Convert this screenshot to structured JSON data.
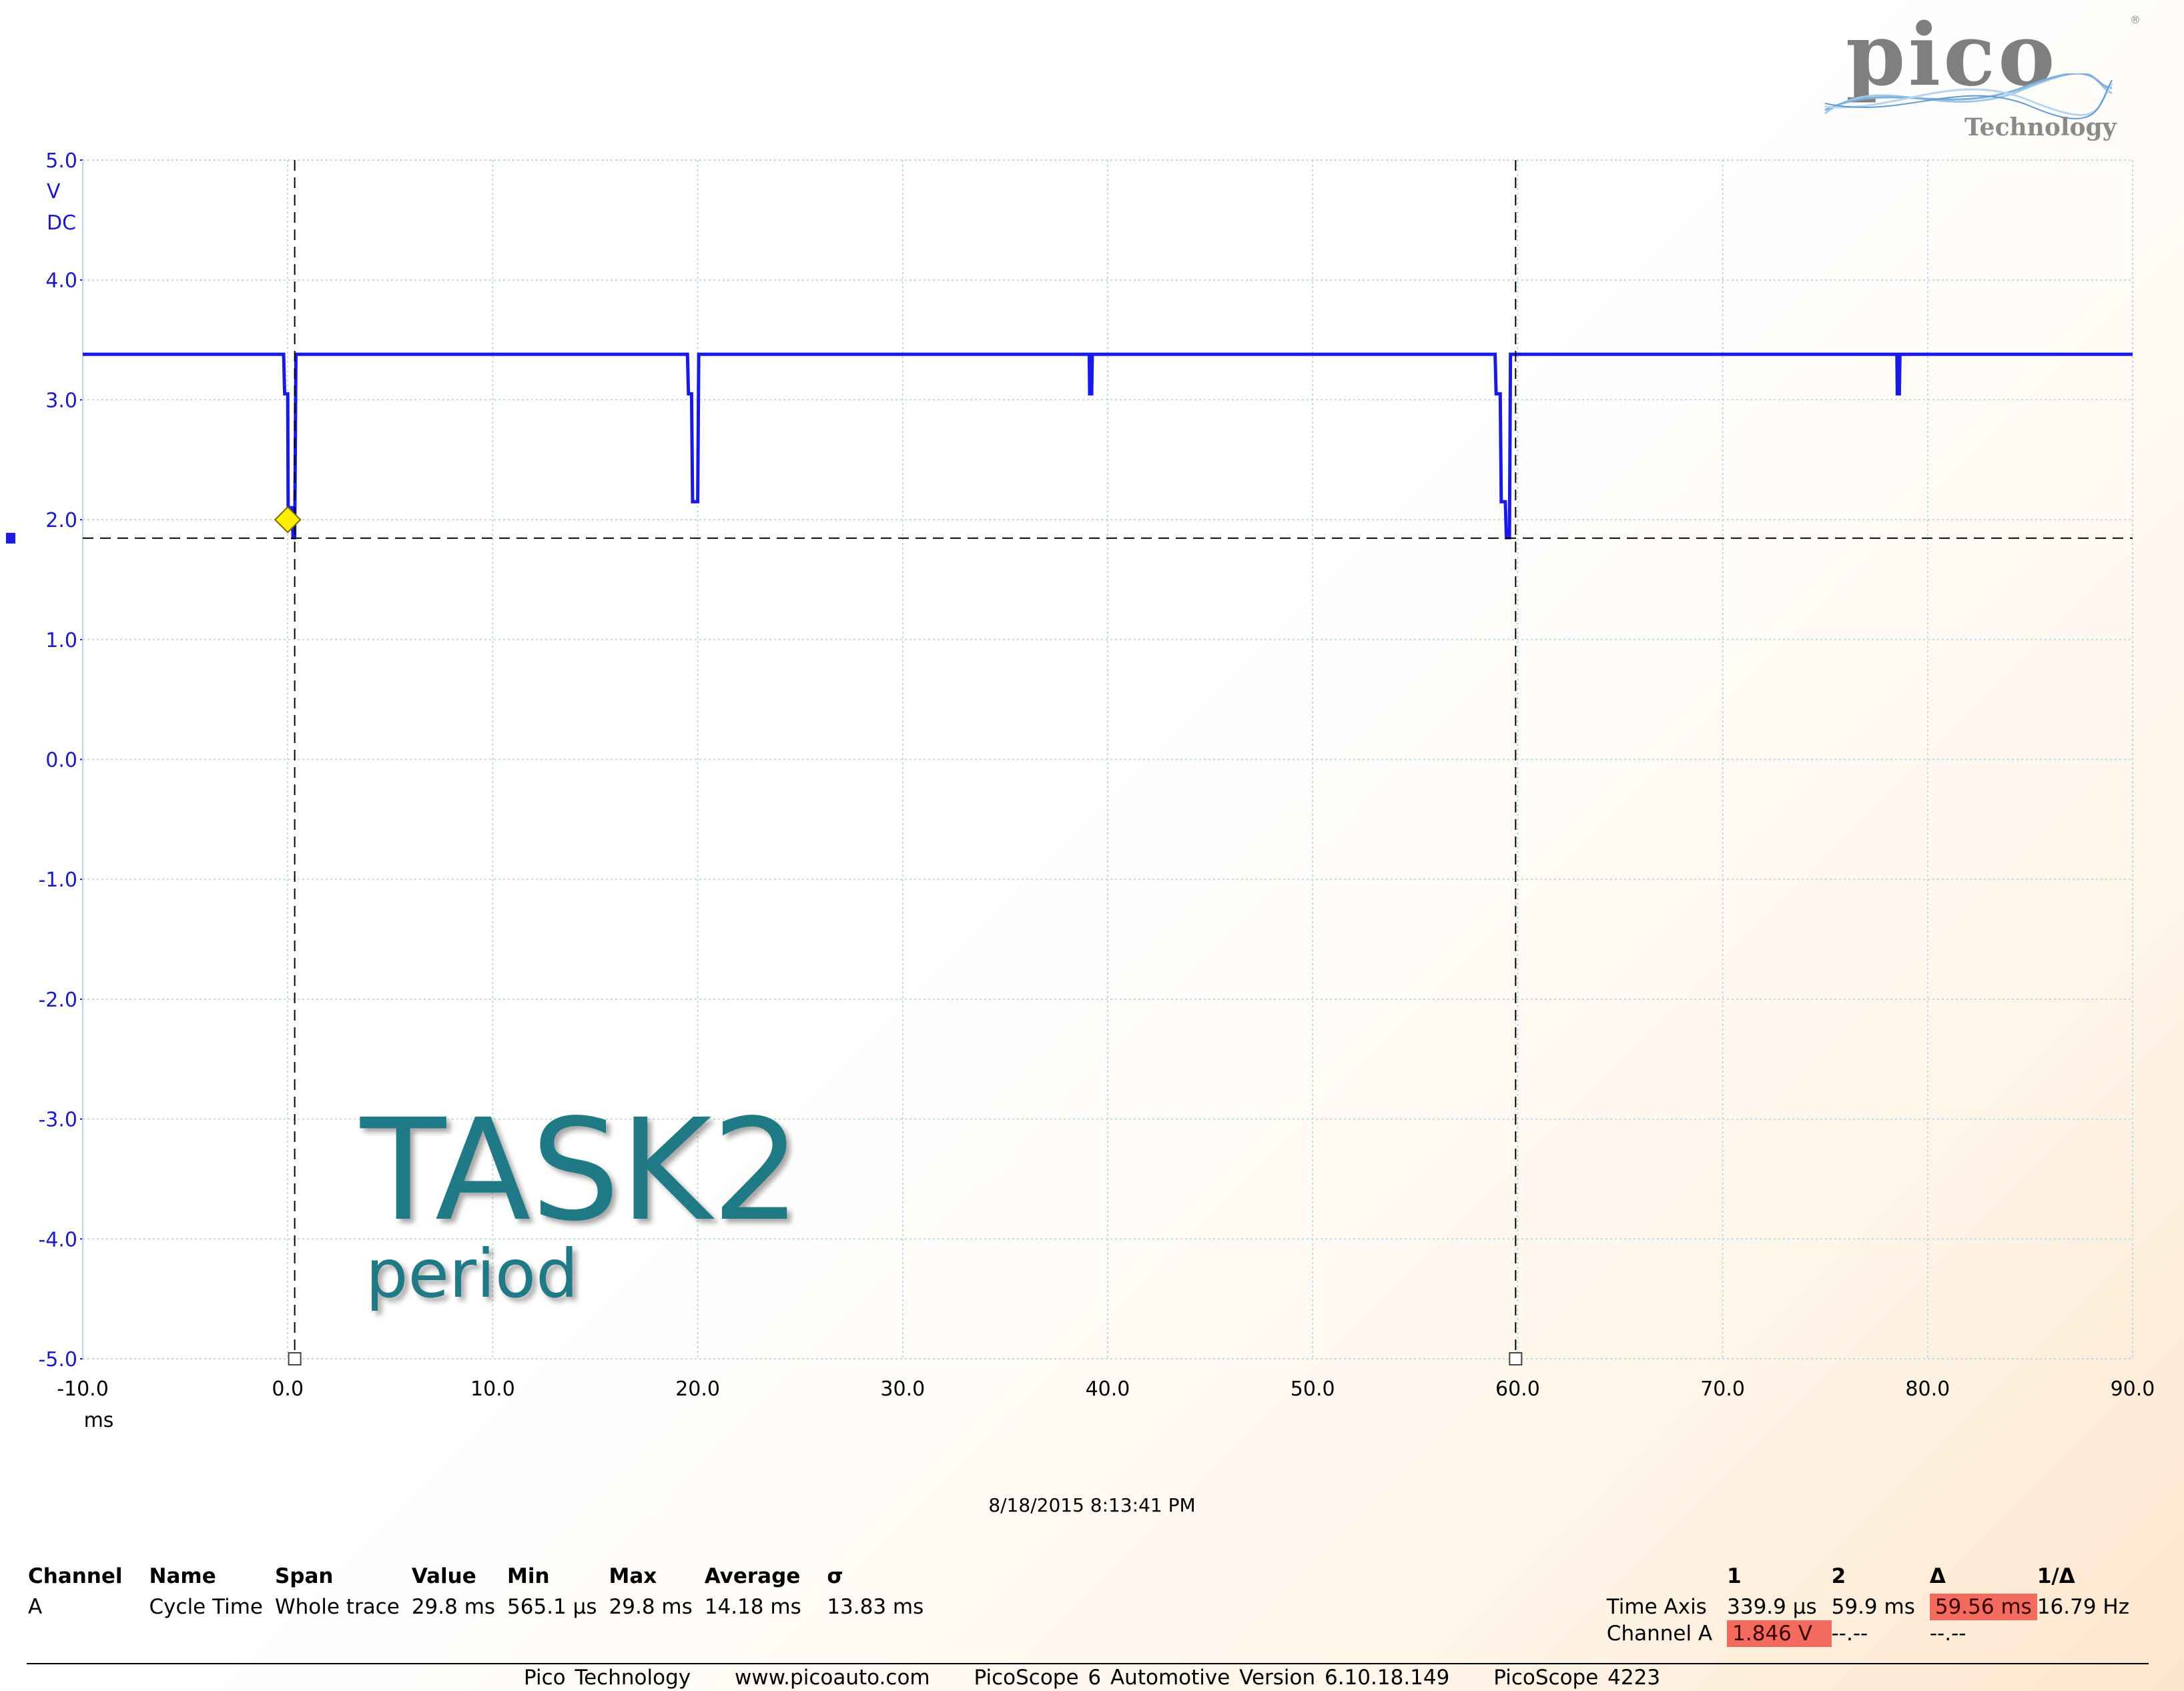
{
  "logo": {
    "wordmark": "pico",
    "reg": "®",
    "subtitle": "Technology"
  },
  "chart_data": {
    "type": "line",
    "title": "",
    "xlabel": "ms",
    "ylabel": "V",
    "ylabel_extra": "DC",
    "xlim": [
      -10,
      90
    ],
    "ylim": [
      -5,
      5
    ],
    "x_ticks": [
      "-10.0",
      "0.0",
      "10.0",
      "20.0",
      "30.0",
      "40.0",
      "50.0",
      "60.0",
      "70.0",
      "80.0",
      "90.0"
    ],
    "y_ticks": [
      "5.0",
      "4.0",
      "3.0",
      "2.0",
      "1.0",
      "0.0",
      "-1.0",
      "-2.0",
      "-3.0",
      "-4.0",
      "-5.0"
    ],
    "grid": true,
    "series": [
      {
        "color": "#1a1ae6",
        "x": [
          -10,
          -0.2,
          -0.15,
          0.0,
          0.02,
          0.2,
          0.26,
          0.34,
          0.4,
          19.5,
          19.55,
          19.7,
          19.75,
          20.0,
          20.05,
          39.1,
          39.12,
          39.22,
          39.25,
          58.9,
          58.95,
          59.15,
          59.2,
          59.4,
          59.45,
          59.6,
          59.65,
          78.5,
          78.52,
          78.62,
          78.65,
          90
        ],
        "values": [
          3.38,
          3.38,
          3.05,
          3.05,
          2.1,
          2.1,
          1.85,
          1.85,
          3.38,
          3.38,
          3.05,
          3.05,
          2.15,
          2.15,
          3.38,
          3.38,
          3.05,
          3.05,
          3.38,
          3.38,
          3.05,
          3.05,
          2.15,
          2.15,
          1.85,
          1.85,
          3.38,
          3.38,
          3.05,
          3.05,
          3.38,
          3.38
        ]
      }
    ],
    "cursor_x": [
      0.34,
      59.9
    ],
    "cursor_y": 1.846,
    "trigger": {
      "x": 0.0,
      "y": 2.0,
      "color": "#ffee00"
    },
    "channel_marker_color": "#1a1ae6"
  },
  "watermark": {
    "title": "TASK2",
    "subtitle": "period"
  },
  "timestamp": "8/18/2015 8:13:41 PM",
  "measurements": {
    "headers": [
      "Channel",
      "Name",
      "Span",
      "Value",
      "Min",
      "Max",
      "Average",
      "σ"
    ],
    "row": [
      "A",
      "Cycle Time",
      "Whole trace",
      "29.8 ms",
      "565.1 µs",
      "29.8 ms",
      "14.18 ms",
      "13.83 ms"
    ]
  },
  "cursor_table": {
    "headers": [
      "1",
      "2",
      "Δ",
      "1/Δ"
    ],
    "time_axis": {
      "label": "Time Axis",
      "c1": "339.9 µs",
      "c2": "59.9 ms",
      "delta": "59.56 ms",
      "inv": "16.79 Hz"
    },
    "channel_a": {
      "label": "Channel A",
      "c1": "1.846 V",
      "c2": "--.--",
      "delta": "--.--"
    }
  },
  "footer": [
    "Pico Technology",
    "www.picoauto.com",
    "PicoScope 6 Automotive Version 6.10.18.149",
    "PicoScope 4223"
  ]
}
